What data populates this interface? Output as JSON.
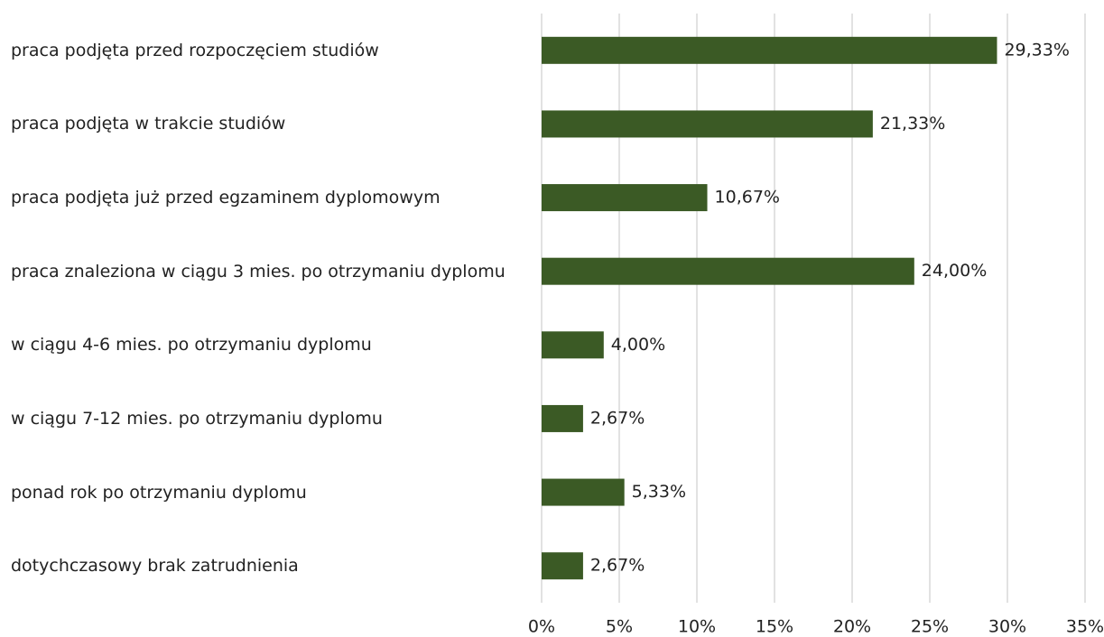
{
  "chart_data": {
    "type": "barh",
    "categories": [
      "praca podjęta przed rozpoczęciem studiów",
      "praca podjęta w trakcie studiów",
      "praca podjęta już przed egzaminem dyplomowym",
      "praca znaleziona w ciągu 3 mies. po otrzymaniu dyplomu",
      "w ciągu 4-6 mies. po otrzymaniu dyplomu",
      "w ciągu 7-12 mies. po otrzymaniu dyplomu",
      "ponad rok po otrzymaniu dyplomu",
      "dotychczasowy brak zatrudnienia"
    ],
    "values": [
      29.33,
      21.33,
      10.67,
      24.0,
      4.0,
      2.67,
      5.33,
      2.67
    ],
    "value_labels": [
      "29,33%",
      "21,33%",
      "10,67%",
      "24,00%",
      "4,00%",
      "2,67%",
      "5,33%",
      "2,67%"
    ],
    "color": "#3b5a25",
    "xlim": [
      0,
      35
    ],
    "xticks": [
      {
        "value": 0,
        "label": "0%"
      },
      {
        "value": 5,
        "label": "5%"
      },
      {
        "value": 10,
        "label": "10%"
      },
      {
        "value": 15,
        "label": "15%"
      },
      {
        "value": 20,
        "label": "20%"
      },
      {
        "value": 25,
        "label": "25%"
      },
      {
        "value": 30,
        "label": "30%"
      },
      {
        "value": 35,
        "label": "35%"
      }
    ],
    "grid": true
  }
}
